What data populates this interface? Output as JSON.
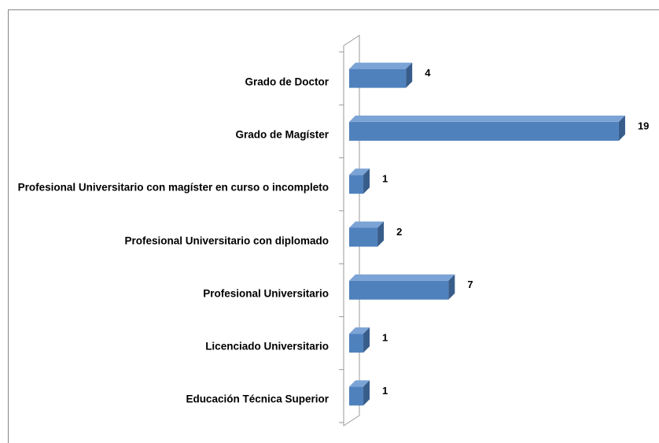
{
  "chart_data": {
    "type": "bar3d-horizontal",
    "categories": [
      "Grado de Doctor",
      "Grado de Magíster",
      "Profesional Universitario con magíster en curso o incompleto",
      "Profesional Universitario con diplomado",
      "Profesional Universitario",
      "Licenciado Universitario",
      "Educación Técnica Superior"
    ],
    "values": [
      4,
      19,
      1,
      2,
      7,
      1,
      1
    ],
    "color": "#4f81bd"
  }
}
